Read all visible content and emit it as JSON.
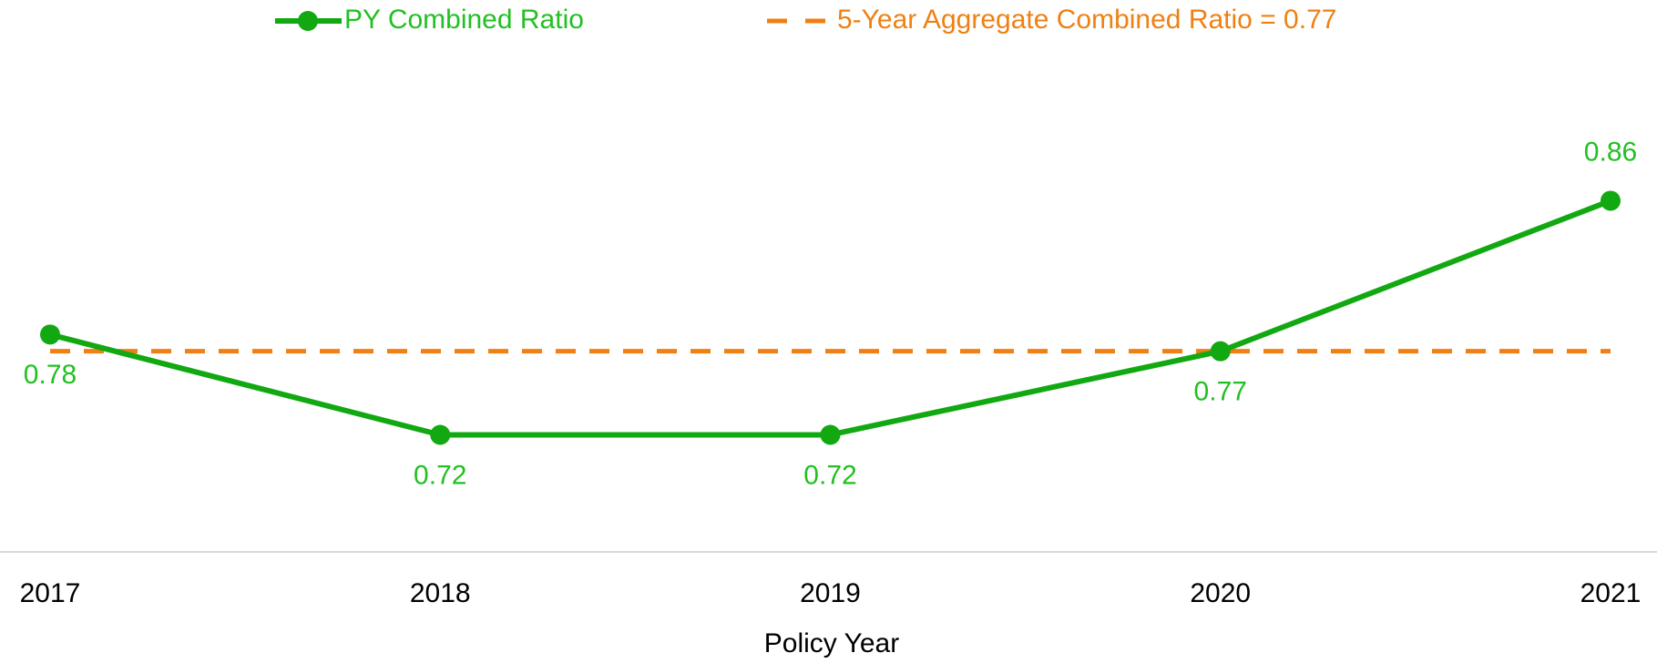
{
  "chart_data": {
    "type": "line",
    "x_label": "Policy Year",
    "categories": [
      "2017",
      "2018",
      "2019",
      "2020",
      "2021"
    ],
    "series": [
      {
        "name": "PY Combined Ratio",
        "color": "#12a812",
        "label_color": "#22c022",
        "values": [
          0.78,
          0.72,
          0.72,
          0.77,
          0.86
        ]
      }
    ],
    "reference_line": {
      "name": "5-Year Aggregate Combined Ratio = 0.77",
      "value": 0.77,
      "color": "#ef8013"
    },
    "ylim": [
      0.65,
      0.9
    ],
    "grid": false
  }
}
